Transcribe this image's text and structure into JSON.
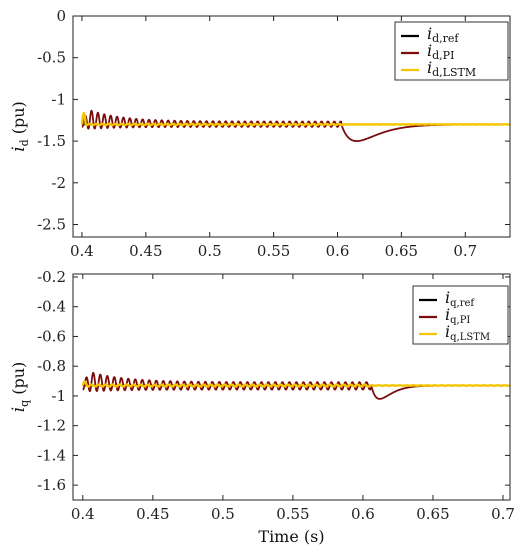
{
  "chart_data": [
    {
      "type": "line",
      "ylabel_main": "i",
      "ylabel_sub": "d",
      "ylabel_unit": " (pu)",
      "xlabel": "",
      "xlim": [
        0.393,
        0.735
      ],
      "ylim": [
        -2.65,
        0.0
      ],
      "xticks": [
        0.4,
        0.45,
        0.5,
        0.55,
        0.6,
        0.65,
        0.7
      ],
      "xtick_labels": [
        "0.4",
        "0.45",
        "0.5",
        "0.55",
        "0.6",
        "0.65",
        "0.7"
      ],
      "yticks": [
        0,
        -0.5,
        -1,
        -1.5,
        -2,
        -2.5
      ],
      "ytick_labels": [
        "0",
        "-0.5",
        "-1",
        "-1.5",
        "-2",
        "-2.5"
      ],
      "legend_position": "top-right",
      "legend": [
        {
          "main": "i",
          "sub": "d,ref"
        },
        {
          "main": "i",
          "sub": "d,PI"
        },
        {
          "main": "i",
          "sub": "d,LSTM"
        }
      ],
      "series": [
        {
          "key": "ref",
          "color": "#000000",
          "points": [
            [
              0.4,
              -1.3
            ],
            [
              0.735,
              -1.3
            ]
          ]
        },
        {
          "key": "pi",
          "color": "#7b0c0c",
          "model": "pi",
          "base": -1.3,
          "t_start": 0.4,
          "t_switch": 0.603,
          "t_end": 0.735,
          "osc_freq": 200,
          "amp_peak": 0.27,
          "amp_steady": 0.065,
          "dip_min": -1.5,
          "dip_time": 0.615
        },
        {
          "key": "lstm",
          "color": "#f5c400",
          "model": "lstm",
          "base": -1.3,
          "t_start": 0.4,
          "t_end": 0.735,
          "spike": -1.17
        }
      ]
    },
    {
      "type": "line",
      "ylabel_main": "i",
      "ylabel_sub": "q",
      "ylabel_unit": " (pu)",
      "xlabel": "Time (s)",
      "xlim": [
        0.393,
        0.705
      ],
      "ylim": [
        -1.7,
        -0.18
      ],
      "xticks": [
        0.4,
        0.45,
        0.5,
        0.55,
        0.6,
        0.65,
        0.7
      ],
      "xtick_labels": [
        "0.4",
        "0.45",
        "0.5",
        "0.55",
        "0.6",
        "0.65",
        "0.7"
      ],
      "yticks": [
        -0.2,
        -0.4,
        -0.6,
        -0.8,
        -1,
        -1.2,
        -1.4,
        -1.6
      ],
      "ytick_labels": [
        "-0.2",
        "-0.4",
        "-0.6",
        "-0.8",
        "-1",
        "-1.2",
        "-1.4",
        "-1.6"
      ],
      "legend_position": "top-right",
      "legend": [
        {
          "main": "i",
          "sub": "q,ref"
        },
        {
          "main": "i",
          "sub": "q,PI"
        },
        {
          "main": "i",
          "sub": "q,LSTM"
        }
      ],
      "series": [
        {
          "key": "ref",
          "color": "#000000",
          "points": [
            [
              0.4,
              -0.93
            ],
            [
              0.705,
              -0.93
            ]
          ]
        },
        {
          "key": "pi",
          "color": "#7b0c0c",
          "model": "pi",
          "base": -0.93,
          "t_start": 0.4,
          "t_switch": 0.606,
          "t_end": 0.705,
          "osc_freq": 200,
          "amp_peak": 0.15,
          "amp_steady": 0.05,
          "dip_min": -1.02,
          "dip_time": 0.612
        },
        {
          "key": "lstm",
          "color": "#f5c400",
          "model": "lstm",
          "base": -0.93,
          "t_start": 0.4,
          "t_end": 0.705,
          "spike": -0.91
        }
      ]
    }
  ]
}
